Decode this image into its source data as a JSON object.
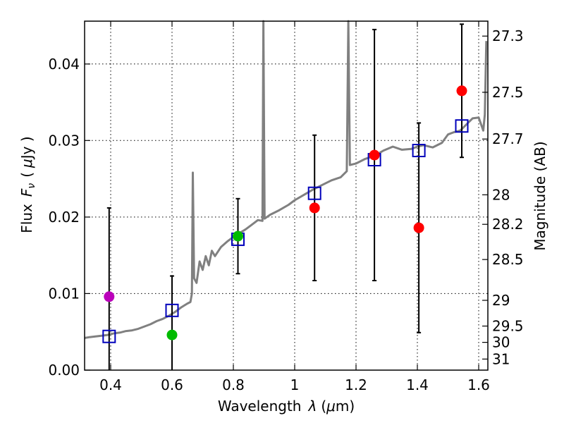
{
  "chart_data": {
    "type": "scatter",
    "xlabel_text": "Wavelength",
    "xlabel_symbol": "λ",
    "xlabel_unit_open": "(",
    "xlabel_unit_mu": "μ",
    "xlabel_unit_rest": "m)",
    "ylabel_text": "Flux",
    "ylabel_symbol_F": "F",
    "ylabel_symbol_nu": "ν",
    "ylabel_unit_open": "(",
    "ylabel_unit_mu": "μ",
    "ylabel_unit_rest": "Jy )",
    "y2label": "Magnitude (AB)",
    "xlim": [
      0.315,
      1.63
    ],
    "ylim": [
      0.0,
      0.0456
    ],
    "grid": true,
    "x_ticks": [
      {
        "value": 0.4,
        "label": "0.4"
      },
      {
        "value": 0.6,
        "label": "0.6"
      },
      {
        "value": 0.8,
        "label": "0.8"
      },
      {
        "value": 1.0,
        "label": "1"
      },
      {
        "value": 1.2,
        "label": "1.2"
      },
      {
        "value": 1.4,
        "label": "1.4"
      },
      {
        "value": 1.6,
        "label": "1.6"
      }
    ],
    "y_ticks": [
      {
        "value": 0.0,
        "label": "0.00"
      },
      {
        "value": 0.01,
        "label": "0.01"
      },
      {
        "value": 0.02,
        "label": "0.02"
      },
      {
        "value": 0.03,
        "label": "0.03"
      },
      {
        "value": 0.04,
        "label": "0.04"
      }
    ],
    "mag_ticks": [
      {
        "mag": 27.3,
        "label": "27.3"
      },
      {
        "mag": 27.5,
        "label": "27.5"
      },
      {
        "mag": 27.7,
        "label": "27.7"
      },
      {
        "mag": 28.0,
        "label": "28"
      },
      {
        "mag": 28.2,
        "label": "28.2"
      },
      {
        "mag": 28.5,
        "label": "28.5"
      },
      {
        "mag": 29.0,
        "label": "29"
      },
      {
        "mag": 29.5,
        "label": "29.5"
      },
      {
        "mag": 30.0,
        "label": "30"
      },
      {
        "mag": 31.0,
        "label": "31"
      }
    ],
    "colors": {
      "spectrum": "#808080",
      "model_box": "#0000bb",
      "errorbar": "#000000",
      "red": "#ff0000",
      "green": "#00bb00",
      "magenta": "#bb00bb"
    },
    "spectrum": [
      [
        0.315,
        0.0042
      ],
      [
        0.33,
        0.0043
      ],
      [
        0.35,
        0.0044
      ],
      [
        0.37,
        0.0045
      ],
      [
        0.39,
        0.0046
      ],
      [
        0.41,
        0.0048
      ],
      [
        0.43,
        0.0049
      ],
      [
        0.45,
        0.0051
      ],
      [
        0.47,
        0.0052
      ],
      [
        0.49,
        0.0054
      ],
      [
        0.51,
        0.0057
      ],
      [
        0.53,
        0.006
      ],
      [
        0.55,
        0.0064
      ],
      [
        0.57,
        0.0067
      ],
      [
        0.59,
        0.0071
      ],
      [
        0.61,
        0.0076
      ],
      [
        0.63,
        0.0082
      ],
      [
        0.65,
        0.0087
      ],
      [
        0.66,
        0.0089
      ],
      [
        0.665,
        0.01
      ],
      [
        0.668,
        0.0258
      ],
      [
        0.672,
        0.012
      ],
      [
        0.68,
        0.0114
      ],
      [
        0.69,
        0.0142
      ],
      [
        0.7,
        0.0131
      ],
      [
        0.71,
        0.0149
      ],
      [
        0.72,
        0.0137
      ],
      [
        0.73,
        0.0156
      ],
      [
        0.74,
        0.0149
      ],
      [
        0.76,
        0.0161
      ],
      [
        0.78,
        0.0168
      ],
      [
        0.8,
        0.0174
      ],
      [
        0.82,
        0.0179
      ],
      [
        0.84,
        0.0184
      ],
      [
        0.86,
        0.019
      ],
      [
        0.88,
        0.0196
      ],
      [
        0.895,
        0.0195
      ],
      [
        0.898,
        0.046
      ],
      [
        0.902,
        0.0198
      ],
      [
        0.92,
        0.0203
      ],
      [
        0.95,
        0.0209
      ],
      [
        0.98,
        0.0216
      ],
      [
        1.0,
        0.0222
      ],
      [
        1.03,
        0.0229
      ],
      [
        1.06,
        0.0236
      ],
      [
        1.09,
        0.0242
      ],
      [
        1.12,
        0.0248
      ],
      [
        1.15,
        0.0252
      ],
      [
        1.17,
        0.026
      ],
      [
        1.175,
        0.046
      ],
      [
        1.18,
        0.0268
      ],
      [
        1.2,
        0.027
      ],
      [
        1.23,
        0.0276
      ],
      [
        1.26,
        0.028
      ],
      [
        1.29,
        0.0287
      ],
      [
        1.32,
        0.0292
      ],
      [
        1.35,
        0.0288
      ],
      [
        1.38,
        0.0289
      ],
      [
        1.4,
        0.0292
      ],
      [
        1.42,
        0.0294
      ],
      [
        1.45,
        0.0291
      ],
      [
        1.48,
        0.0297
      ],
      [
        1.5,
        0.0308
      ],
      [
        1.52,
        0.0311
      ],
      [
        1.54,
        0.0313
      ],
      [
        1.56,
        0.0321
      ],
      [
        1.58,
        0.0329
      ],
      [
        1.6,
        0.033
      ],
      [
        1.615,
        0.0313
      ],
      [
        1.62,
        0.0334
      ],
      [
        1.625,
        0.043
      ]
    ],
    "model_points": [
      {
        "x": 0.395,
        "y": 0.0044
      },
      {
        "x": 0.6,
        "y": 0.0078
      },
      {
        "x": 0.815,
        "y": 0.0171
      },
      {
        "x": 1.065,
        "y": 0.0231
      },
      {
        "x": 1.26,
        "y": 0.0275
      },
      {
        "x": 1.405,
        "y": 0.0287
      },
      {
        "x": 1.545,
        "y": 0.0319
      }
    ],
    "observed_points": [
      {
        "x": 0.395,
        "y": 0.0096,
        "err": 0.0116,
        "color": "magenta"
      },
      {
        "x": 0.6,
        "y": 0.0046,
        "err": 0.0077,
        "color": "green"
      },
      {
        "x": 0.815,
        "y": 0.0175,
        "err": 0.0049,
        "color": "green"
      },
      {
        "x": 1.065,
        "y": 0.0212,
        "err": 0.0095,
        "color": "red"
      },
      {
        "x": 1.26,
        "y": 0.0281,
        "err": 0.0164,
        "color": "red"
      },
      {
        "x": 1.405,
        "y": 0.0186,
        "err": 0.0137,
        "color": "red"
      },
      {
        "x": 1.545,
        "y": 0.0365,
        "err": 0.0087,
        "color": "red"
      }
    ]
  }
}
